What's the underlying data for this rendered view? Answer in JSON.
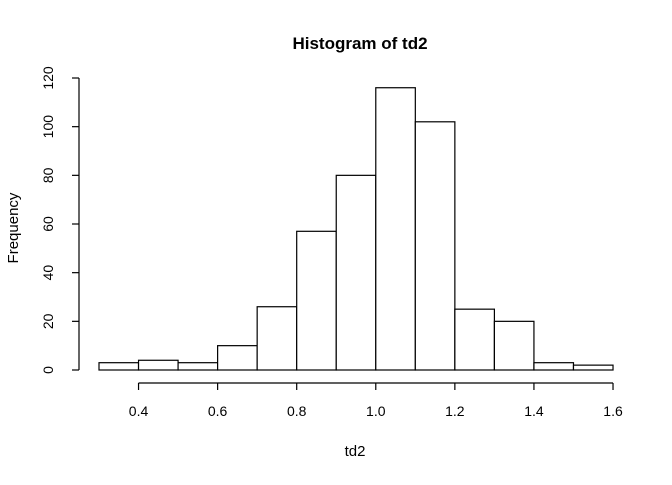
{
  "chart_data": {
    "type": "bar",
    "title": "Histogram of td2",
    "xlabel": "td2",
    "ylabel": "Frequency",
    "bins": [
      {
        "start": 0.3,
        "end": 0.4,
        "count": 3
      },
      {
        "start": 0.4,
        "end": 0.5,
        "count": 4
      },
      {
        "start": 0.5,
        "end": 0.6,
        "count": 3
      },
      {
        "start": 0.6,
        "end": 0.7,
        "count": 10
      },
      {
        "start": 0.7,
        "end": 0.8,
        "count": 26
      },
      {
        "start": 0.8,
        "end": 0.9,
        "count": 57
      },
      {
        "start": 0.9,
        "end": 1.0,
        "count": 80
      },
      {
        "start": 1.0,
        "end": 1.1,
        "count": 116
      },
      {
        "start": 1.1,
        "end": 1.2,
        "count": 102
      },
      {
        "start": 1.2,
        "end": 1.3,
        "count": 25
      },
      {
        "start": 1.3,
        "end": 1.4,
        "count": 20
      },
      {
        "start": 1.4,
        "end": 1.5,
        "count": 3
      },
      {
        "start": 1.5,
        "end": 1.6,
        "count": 2
      }
    ],
    "x_ticks": [
      0.4,
      0.6,
      0.8,
      1.0,
      1.2,
      1.4,
      1.6
    ],
    "x_tick_labels": [
      "0.4",
      "0.6",
      "0.8",
      "1.0",
      "1.2",
      "1.4",
      "1.6"
    ],
    "y_ticks": [
      0,
      20,
      40,
      60,
      80,
      100,
      120
    ],
    "y_tick_labels": [
      "0",
      "20",
      "40",
      "60",
      "80",
      "100",
      "120"
    ],
    "xlim": [
      0.3,
      1.6
    ],
    "ylim": [
      0,
      120
    ],
    "grid": false,
    "legend": "none"
  }
}
